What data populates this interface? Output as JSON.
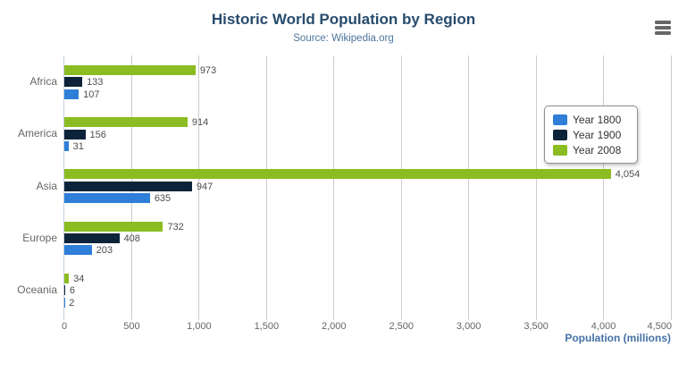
{
  "chart_data": {
    "type": "bar",
    "orientation": "horizontal",
    "title": "Historic World Population by Region",
    "subtitle": "Source: Wikipedia.org",
    "categories": [
      "Africa",
      "America",
      "Asia",
      "Europe",
      "Oceania"
    ],
    "series": [
      {
        "name": "Year 1800",
        "color": "#2f7ed8",
        "values": [
          107,
          31,
          635,
          203,
          2
        ]
      },
      {
        "name": "Year 1900",
        "color": "#0d233a",
        "values": [
          133,
          156,
          947,
          408,
          6
        ]
      },
      {
        "name": "Year 2008",
        "color": "#8bbc21",
        "values": [
          973,
          914,
          4054,
          732,
          34
        ]
      }
    ],
    "data_labels": {
      "series": [
        [
          "107",
          "31",
          "635",
          "203",
          "2"
        ],
        [
          "133",
          "156",
          "947",
          "408",
          "6"
        ],
        [
          "973",
          "914",
          "4,054",
          "732",
          "34"
        ]
      ]
    },
    "value_axis": {
      "label": "Population (millions)",
      "min": 0,
      "max": 4500,
      "tick_interval": 500,
      "tick_labels": [
        "0",
        "500",
        "1,000",
        "1,500",
        "2,000",
        "2,500",
        "3,000",
        "3,500",
        "4,000",
        "4,500"
      ]
    },
    "legend": {
      "position": "right",
      "entries": [
        "Year 1800",
        "Year 1900",
        "Year 2008"
      ]
    },
    "grid": true
  },
  "colors": {
    "title": "#274b6d",
    "subtitle": "#4d759e",
    "axis_title": "#4572a7",
    "tick_label": "#666666",
    "data_label": "#4d4d4d",
    "gridline": "#cccccc",
    "axis_line": "#c0d0e0",
    "legend_border": "#909090",
    "menu_icon": "#666666"
  },
  "context_menu": {
    "tooltip": "Chart context menu"
  }
}
